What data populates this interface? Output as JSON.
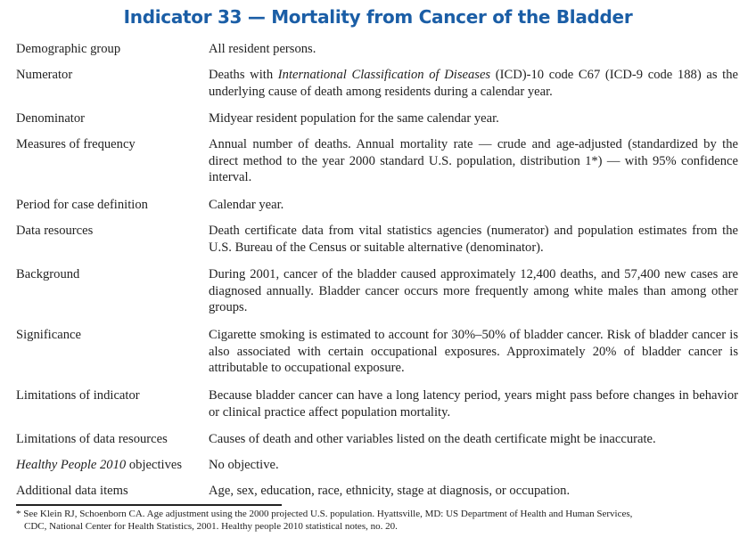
{
  "title": "Indicator 33 — Mortality from Cancer of the Bladder",
  "rows": [
    {
      "label": "Demographic group",
      "value": "All resident persons."
    },
    {
      "label": "Numerator",
      "value_pre": "Deaths with ",
      "value_italic": "International Classification of Diseases",
      "value_post": " (ICD)-10 code C67 (ICD-9 code 188) as the underlying cause of death among residents during a calendar year."
    },
    {
      "label": "Denominator",
      "value": "Midyear resident population for the same calendar year."
    },
    {
      "label": "Measures of frequency",
      "value": "Annual number of deaths. Annual mortality rate — crude and age-adjusted (standardized by the direct method to the year 2000 standard U.S. population, distribution 1*) — with 95% confidence interval."
    },
    {
      "label": "Period for case definition",
      "value": "Calendar year."
    },
    {
      "label": "Data resources",
      "value": "Death certificate data from vital statistics agencies (numerator) and population estimates from the U.S. Bureau of the Census or suitable alternative (denominator)."
    },
    {
      "label": "Background",
      "value": "During 2001, cancer of the bladder caused approximately 12,400 deaths, and 57,400 new cases are diagnosed annually. Bladder cancer occurs more frequently among white males than among other groups."
    },
    {
      "label": "Significance",
      "value": "Cigarette smoking is estimated to account for 30%–50% of bladder cancer. Risk of bladder cancer is also associated with certain occupational exposures. Approximately 20% of bladder cancer is attributable to occupational exposure."
    },
    {
      "label": "Limitations of indicator",
      "value": "Because bladder cancer can have a long latency period, years might pass before changes in behavior or clinical practice affect population mortality."
    },
    {
      "label": "Limitations of data resources",
      "value": "Causes of death and other variables listed on the death certificate might be inaccurate."
    },
    {
      "label_italic": "Healthy People 2010",
      "label_post": " objectives",
      "value": "No objective."
    },
    {
      "label": "Additional data items",
      "value": "Age, sex, education, race, ethnicity, stage at diagnosis, or occupation."
    }
  ],
  "footnote": {
    "line1": "* See Klein RJ, Schoenborn CA. Age adjustment using the 2000 projected U.S. population. Hyattsville, MD: US Department of Health and Human Services,",
    "line2": "CDC, National Center for Health Statistics, 2001. Healthy people 2010 statistical notes, no. 20."
  },
  "colors": {
    "title": "#1b5ea6"
  }
}
